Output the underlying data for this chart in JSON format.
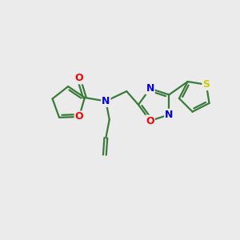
{
  "background_color": "#ebebeb",
  "bond_color": "#3a7a3a",
  "atom_colors": {
    "O": "#ff0000",
    "N": "#0000ee",
    "S": "#cccc00",
    "C": "#3a7a3a"
  },
  "figsize": [
    3.0,
    3.0
  ],
  "dpi": 100,
  "xlim": [
    0,
    10
  ],
  "ylim": [
    0,
    10
  ]
}
